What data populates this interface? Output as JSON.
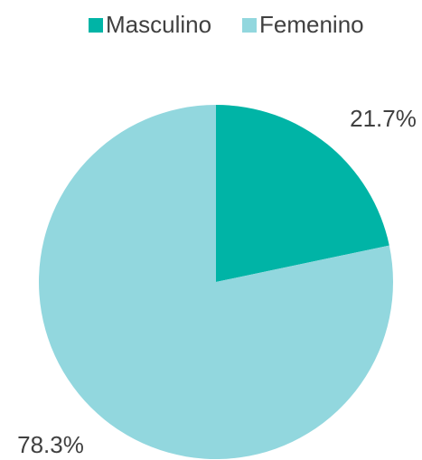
{
  "chart_data": {
    "type": "pie",
    "categories": [
      "Masculino",
      "Femenino"
    ],
    "values": [
      21.7,
      78.3
    ],
    "value_labels": [
      "21.7%",
      "78.3%"
    ],
    "colors": [
      "#00b4a6",
      "#92d7de"
    ],
    "legend": "top"
  }
}
